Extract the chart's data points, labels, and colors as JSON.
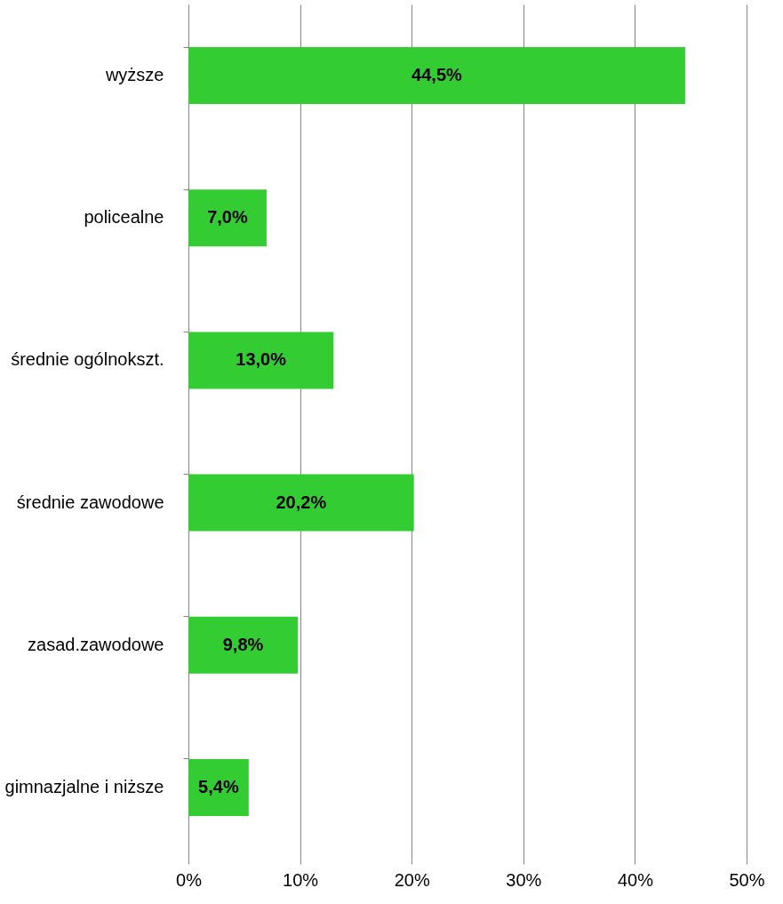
{
  "chart_data": {
    "type": "bar",
    "orientation": "horizontal",
    "categories": [
      "wyższe",
      "policealne",
      "średnie ogólnokszt.",
      "średnie zawodowe",
      "zasad.zawodowe",
      "gimnazjalne i niższe"
    ],
    "values": [
      44.5,
      7.0,
      13.0,
      20.2,
      9.8,
      5.4
    ],
    "value_labels": [
      "44,5%",
      "7,0%",
      "13,0%",
      "20,2%",
      "9,8%",
      "5,4%"
    ],
    "color": "#33cc33",
    "xlim": [
      0,
      50
    ],
    "xticks": [
      {
        "value": 0,
        "label": "0%"
      },
      {
        "value": 10,
        "label": "10%"
      },
      {
        "value": 20,
        "label": "20%"
      },
      {
        "value": 30,
        "label": "30%"
      },
      {
        "value": 40,
        "label": "40%"
      },
      {
        "value": 50,
        "label": "50%"
      }
    ],
    "grid": "x"
  }
}
